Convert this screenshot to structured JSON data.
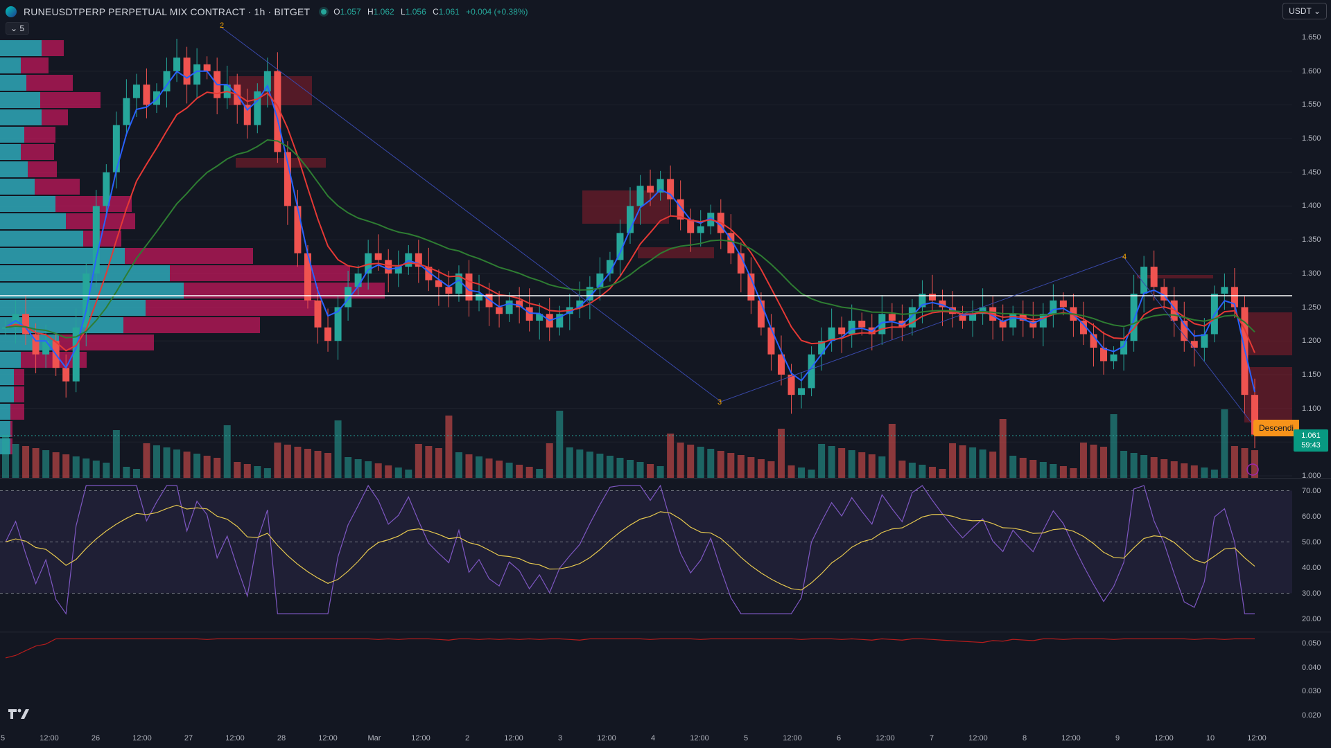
{
  "header": {
    "symbol": "RUNEUSDTPERP PERPETUAL MIX CONTRACT · 1h · BITGET",
    "o_label": "O",
    "o_value": "1.057",
    "h_label": "H",
    "h_value": "1.062",
    "l_label": "L",
    "l_value": "1.056",
    "c_label": "C",
    "c_value": "1.061",
    "change": "+0.004 (+0.38%)"
  },
  "collapse_label": "5",
  "currency_label": "USDT",
  "price_axis": [
    "1.650",
    "1.600",
    "1.550",
    "1.500",
    "1.450",
    "1.400",
    "1.350",
    "1.300",
    "1.250",
    "1.200",
    "1.150",
    "1.100",
    "1.000"
  ],
  "price_tag": {
    "price": "1.061",
    "countdown": "59:43"
  },
  "descending_label": "Descendi",
  "rsi_axis": [
    "70.00",
    "60.00",
    "50.00",
    "40.00",
    "30.00",
    "20.00"
  ],
  "third_axis": [
    "0.050",
    "0.040",
    "0.030",
    "0.020"
  ],
  "time_axis": [
    "5",
    "12:00",
    "26",
    "12:00",
    "27",
    "12:00",
    "28",
    "12:00",
    "Mar",
    "12:00",
    "2",
    "12:00",
    "3",
    "12:00",
    "4",
    "12:00",
    "5",
    "12:00",
    "6",
    "12:00",
    "7",
    "12:00",
    "8",
    "12:00",
    "9",
    "12:00",
    "10",
    "12:00"
  ],
  "wave_labels": [
    "2",
    "3",
    "4"
  ],
  "colors": {
    "up": "#26a69a",
    "down": "#ef5350",
    "bg": "#131722",
    "ema_blue": "#2962ff",
    "ema_red": "#e53935",
    "ema_green": "#2e7d32",
    "rsi": "#7e57c2",
    "rsi_ma": "#e6c84f"
  },
  "chart_data": {
    "type": "candlestick",
    "price_range": [
      1.0,
      1.67
    ],
    "close": [
      1.22,
      1.24,
      1.21,
      1.18,
      1.2,
      1.16,
      1.14,
      1.22,
      1.3,
      1.4,
      1.45,
      1.52,
      1.56,
      1.58,
      1.55,
      1.57,
      1.6,
      1.62,
      1.58,
      1.61,
      1.6,
      1.56,
      1.58,
      1.55,
      1.52,
      1.57,
      1.6,
      1.48,
      1.4,
      1.33,
      1.26,
      1.22,
      1.2,
      1.25,
      1.28,
      1.3,
      1.33,
      1.32,
      1.3,
      1.31,
      1.33,
      1.31,
      1.29,
      1.28,
      1.27,
      1.3,
      1.26,
      1.27,
      1.25,
      1.24,
      1.26,
      1.25,
      1.23,
      1.24,
      1.22,
      1.24,
      1.25,
      1.26,
      1.28,
      1.3,
      1.32,
      1.36,
      1.4,
      1.43,
      1.42,
      1.44,
      1.41,
      1.38,
      1.36,
      1.37,
      1.39,
      1.36,
      1.33,
      1.3,
      1.26,
      1.22,
      1.18,
      1.15,
      1.12,
      1.13,
      1.18,
      1.2,
      1.22,
      1.21,
      1.23,
      1.22,
      1.21,
      1.24,
      1.23,
      1.22,
      1.25,
      1.27,
      1.26,
      1.25,
      1.24,
      1.23,
      1.24,
      1.25,
      1.23,
      1.22,
      1.24,
      1.23,
      1.22,
      1.24,
      1.26,
      1.25,
      1.23,
      1.21,
      1.19,
      1.17,
      1.18,
      1.2,
      1.27,
      1.31,
      1.28,
      1.26,
      1.23,
      1.2,
      1.19,
      1.21,
      1.27,
      1.28,
      1.25,
      1.12,
      1.061
    ],
    "rsi_range": [
      15,
      75
    ],
    "vol_range": [
      0.015,
      0.055
    ]
  }
}
